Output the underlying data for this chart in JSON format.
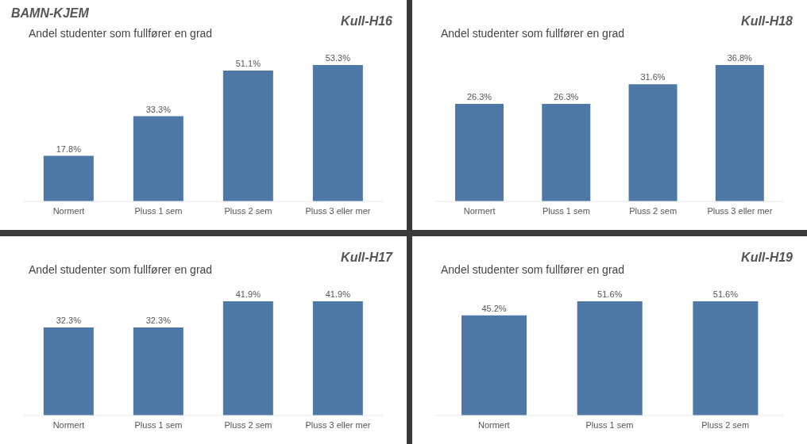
{
  "chart_data": [
    {
      "type": "bar",
      "title": "Andel studenter som fullfører en grad",
      "annotations": [
        "BAMN-KJEM",
        "Kull-H16"
      ],
      "categories": [
        "Normert",
        "Pluss 1 sem",
        "Pluss 2 sem",
        "Pluss 3 eller mer"
      ],
      "values": [
        17.8,
        33.3,
        51.1,
        53.3
      ],
      "value_labels": [
        "17.8%",
        "33.3%",
        "51.1%",
        "53.3%"
      ],
      "color": "#4e79a7"
    },
    {
      "type": "bar",
      "title": "Andel studenter som fullfører en grad",
      "annotations": [
        "Kull-H18"
      ],
      "categories": [
        "Normert",
        "Pluss 1 sem",
        "Pluss 2 sem",
        "Pluss 3 eller mer"
      ],
      "values": [
        26.3,
        26.3,
        31.6,
        36.8
      ],
      "value_labels": [
        "26.3%",
        "26.3%",
        "31.6%",
        "36.8%"
      ],
      "color": "#4e79a7"
    },
    {
      "type": "bar",
      "title": "Andel studenter som fullfører en grad",
      "annotations": [
        "Kull-H17"
      ],
      "categories": [
        "Normert",
        "Pluss 1 sem",
        "Pluss 2 sem",
        "Pluss 3 eller mer"
      ],
      "values": [
        32.3,
        32.3,
        41.9,
        41.9
      ],
      "value_labels": [
        "32.3%",
        "32.3%",
        "41.9%",
        "41.9%"
      ],
      "color": "#4e79a7"
    },
    {
      "type": "bar",
      "title": "Andel studenter som fullfører en grad",
      "annotations": [
        "Kull-H19"
      ],
      "categories": [
        "Normert",
        "Pluss 1 sem",
        "Pluss 2 sem"
      ],
      "values": [
        45.2,
        51.6,
        51.6
      ],
      "value_labels": [
        "45.2%",
        "51.6%",
        "51.6%"
      ],
      "color": "#4e79a7"
    }
  ]
}
